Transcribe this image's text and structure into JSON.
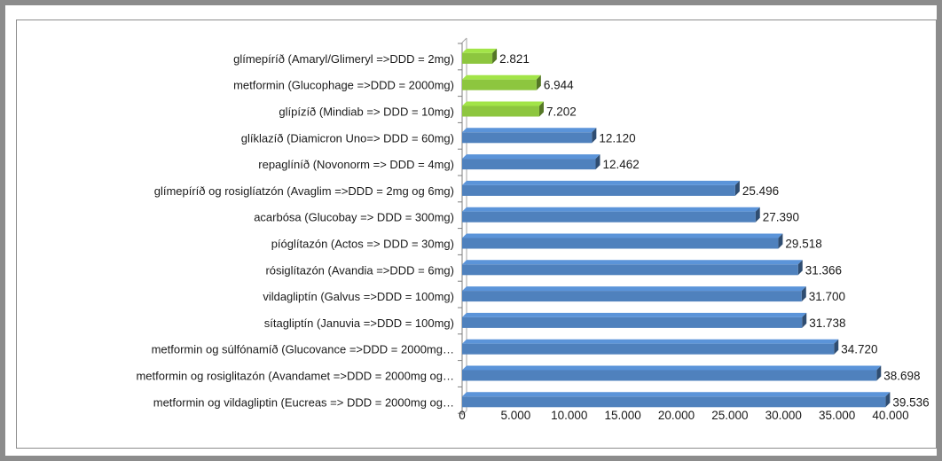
{
  "chart_data": {
    "type": "bar",
    "orientation": "horizontal",
    "categories": [
      "glímepíríð (Amaryl/Glimeryl  =>DDD = 2mg)",
      "metformin (Glucophage =>DDD = 2000mg)",
      "glípízíð (Mindiab => DDD =  10mg)",
      "glíklazíð (Diamicron Uno=> DDD = 60mg)",
      "repaglíníð (Novonorm => DDD = 4mg)",
      "glímepíríð og rosiglíatzón (Avaglim =>DDD =  2mg og 6mg)",
      "acarbósa (Glucobay => DDD = 300mg)",
      "píóglítazón (Actos => DDD = 30mg)",
      "rósiglítazón (Avandia =>DDD =  6mg)",
      "vildagliptín (Galvus =>DDD = 100mg)",
      "sítagliptín (Januvia =>DDD = 100mg)",
      "metformin og súlfónamíð (Glucovance =>DDD = 2000mg…",
      "metformin og rosiglitazón (Avandamet =>DDD = 2000mg  og…",
      "metformin og vildagliptin (Eucreas => DDD = 2000mg og…"
    ],
    "values": [
      2821,
      6944,
      7202,
      12120,
      12462,
      25496,
      27390,
      29518,
      31366,
      31700,
      31738,
      34720,
      38698,
      39536
    ],
    "value_labels": [
      "2.821",
      "6.944",
      "7.202",
      "12.120",
      "12.462",
      "25.496",
      "27.390",
      "29.518",
      "31.366",
      "31.700",
      "31.738",
      "34.720",
      "38.698",
      "39.536"
    ],
    "bar_colors": [
      "#8dc63f",
      "#8dc63f",
      "#8dc63f",
      "#4f81bd",
      "#4f81bd",
      "#4f81bd",
      "#4f81bd",
      "#4f81bd",
      "#4f81bd",
      "#4f81bd",
      "#4f81bd",
      "#4f81bd",
      "#4f81bd",
      "#4f81bd"
    ],
    "xlim": [
      0,
      40000
    ],
    "x_ticks": [
      0,
      5000,
      10000,
      15000,
      20000,
      25000,
      30000,
      35000,
      40000
    ],
    "x_tick_labels": [
      "0",
      "5.000",
      "10.000",
      "15.000",
      "20.000",
      "25.000",
      "30.000",
      "35.000",
      "40.000"
    ],
    "title": "",
    "xlabel": "",
    "ylabel": "",
    "grid": false,
    "legend": "none",
    "style": "3d-bar"
  }
}
